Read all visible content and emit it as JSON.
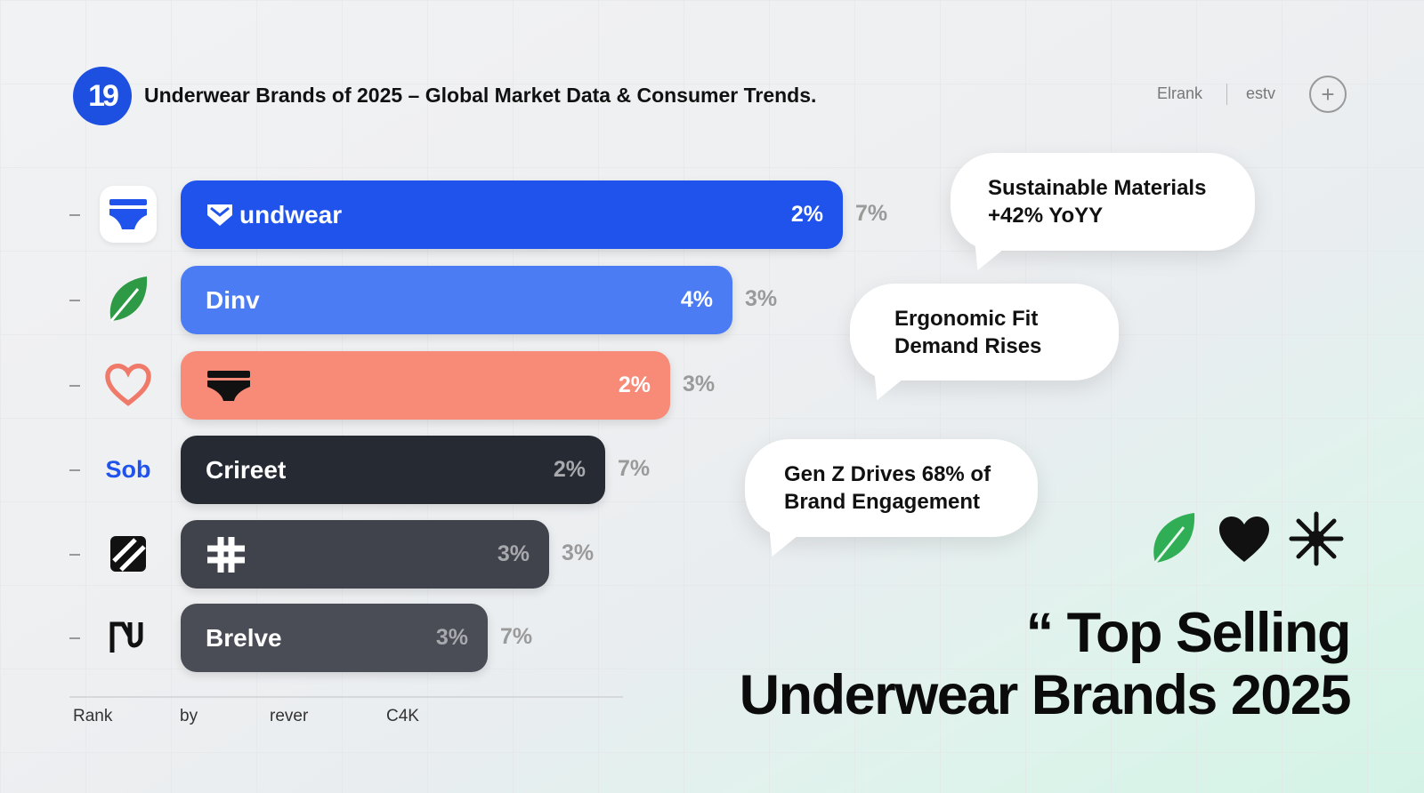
{
  "header": {
    "logo_text": "19",
    "title": "Underwear Brands of 2025 – Global Market Data & Consumer Trends.",
    "links": [
      "Elrank",
      "estv"
    ],
    "plus_icon": "plus-icon"
  },
  "chart_data": {
    "type": "bar",
    "orientation": "horizontal",
    "categories": [
      "undwear",
      "Dinv",
      "",
      "Crireet",
      "",
      "Brelve"
    ],
    "row_icons": [
      "underwear-icon",
      "leaf-icon",
      "heart-icon",
      "Sob",
      "slash-square-icon",
      "nj-logo-icon"
    ],
    "bar_labels": [
      "2%",
      "4%",
      "2%",
      "2%",
      "3%",
      "3%"
    ],
    "outer_labels": [
      "7%",
      "3%",
      "3%",
      "7%",
      "3%",
      "7%"
    ],
    "bar_colors": [
      "#1f53ec",
      "#4c7cf3",
      "#f88a78",
      "#262a33",
      "#40434c",
      "#4a4d55"
    ],
    "xaxis_labels": [
      "Rank",
      "by",
      "rever",
      "C4K"
    ]
  },
  "callouts": [
    "Sustainable Materials",
    "+42% YoYY",
    "Ergonomic Fit",
    "Demand Rises",
    "Gen Z Drives 68% of",
    "Brand Engagement"
  ],
  "footer_icons": [
    "leaf-icon",
    "heart-icon",
    "star-icon"
  ],
  "headline": {
    "line1": "“ Top Selling",
    "line2": "Underwear Brands 2025"
  }
}
